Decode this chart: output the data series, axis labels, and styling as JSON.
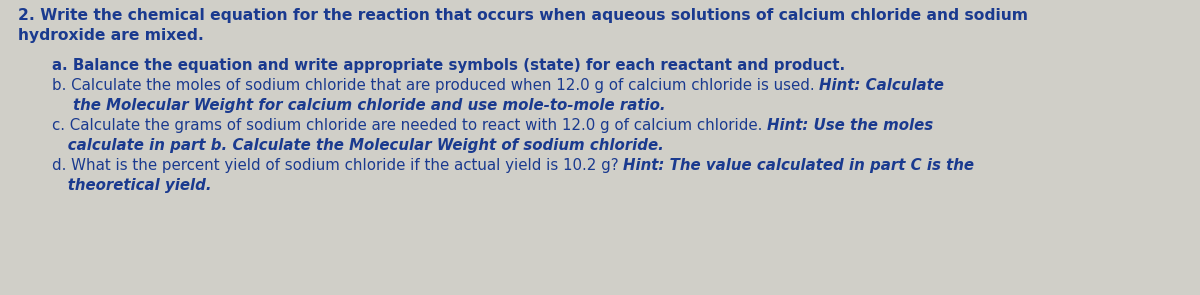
{
  "background_color": "#d0cfc8",
  "text_color": "#1a3a8f",
  "title_line1": "2. Write the chemical equation for the reaction that occurs when aqueous solutions of calcium chloride and sodium",
  "title_line2": "hydroxide are mixed.",
  "item_a": "a. Balance the equation and write appropriate symbols (state) for each reactant and product.",
  "item_b_normal": "b. Calculate the moles of sodium chloride that are produced when 12.0 g of calcium chloride is used. ",
  "item_b_hint": "Hint: Calculate",
  "item_b2": "    the Molecular Weight for calcium chloride and use mole-to-mole ratio.",
  "item_c_normal": "c. Calculate the grams of sodium chloride are needed to react with 12.0 g of calcium chloride. ",
  "item_c_hint": "Hint: Use the moles",
  "item_c2": "   calculate in part b. Calculate the Molecular Weight of sodium chloride.",
  "item_d_normal": "d. What is the percent yield of sodium chloride if the actual yield is 10.2 g? ",
  "item_d_hint": "Hint: The value calculated in part C is the",
  "item_d2": "   theoretical yield.",
  "fs_title": 11.2,
  "fs_body": 10.8,
  "bg": "#d0cfc8",
  "fg": "#1a3a8f"
}
